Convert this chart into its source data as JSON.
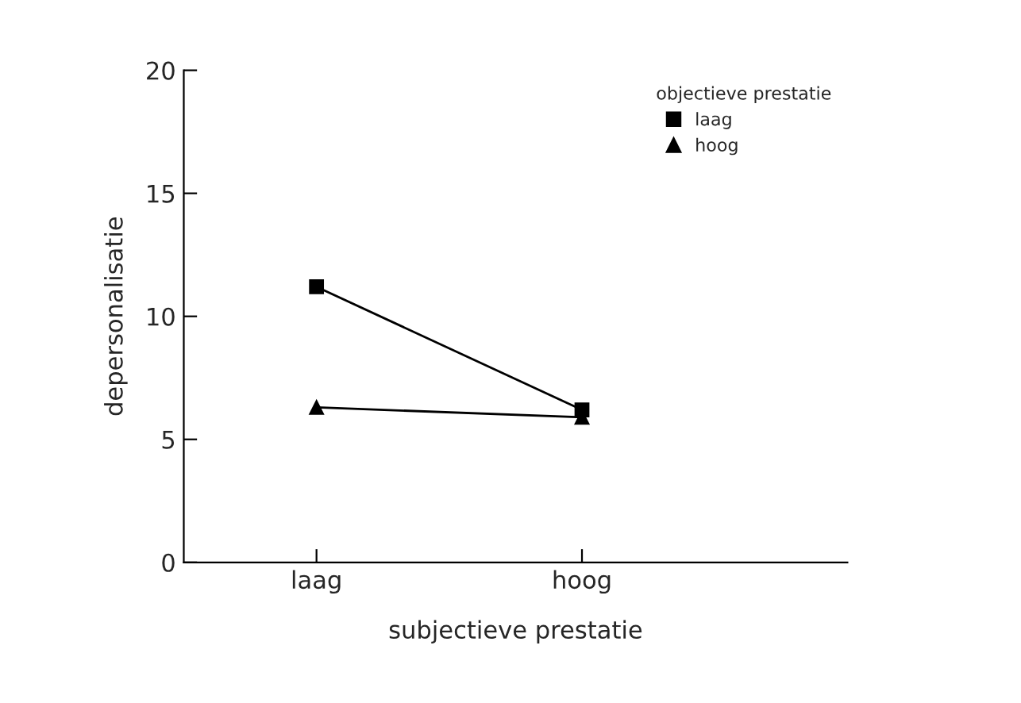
{
  "chart_data": {
    "type": "line",
    "xlabel": "subjectieve prestatie",
    "ylabel": "depersonalisatie",
    "legend_title": "objectieve prestatie",
    "categories": [
      "laag",
      "hoog"
    ],
    "series": [
      {
        "name": "laag",
        "color": "#000000",
        "marker": "square",
        "values": [
          11.2,
          6.2
        ]
      },
      {
        "name": "hoog",
        "color": "#000000",
        "marker": "triangle",
        "values": [
          6.3,
          5.9
        ]
      }
    ],
    "ylim": [
      0,
      20
    ],
    "yticks": [
      0,
      5,
      10,
      15,
      20
    ],
    "grid": false,
    "legend": "top right",
    "line_style": "solid"
  }
}
